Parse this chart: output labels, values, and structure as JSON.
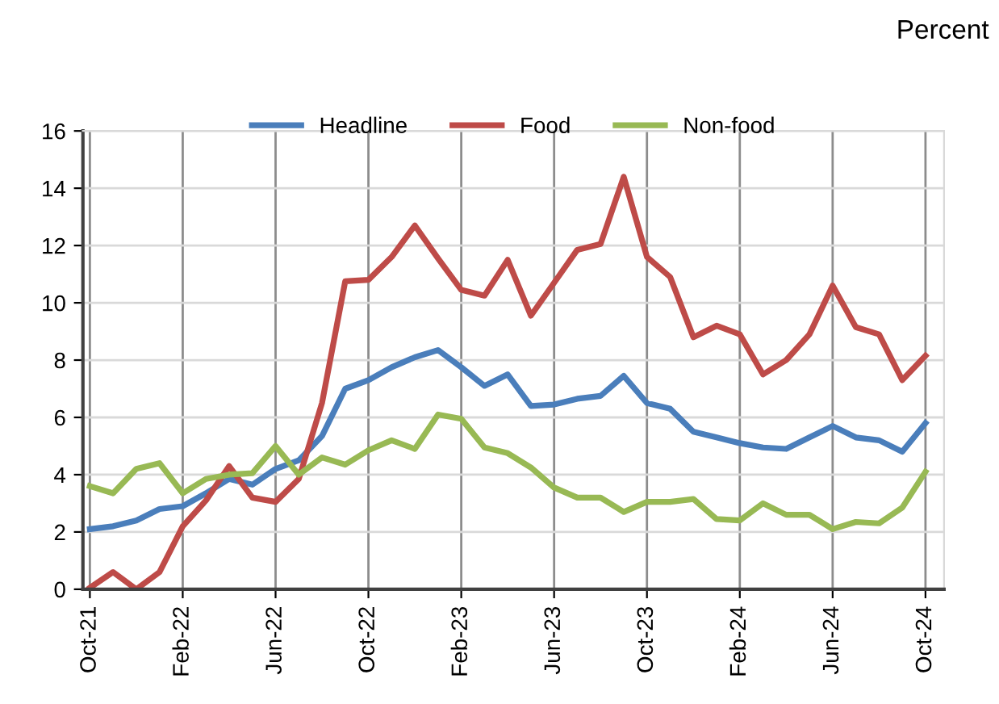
{
  "chart_data": {
    "type": "line",
    "ylabel": "Percent",
    "categories": [
      "Oct-21",
      null,
      null,
      null,
      "Feb-22",
      null,
      null,
      null,
      "Jun-22",
      null,
      null,
      null,
      "Oct-22",
      null,
      null,
      null,
      "Feb-23",
      null,
      null,
      null,
      "Jun-23",
      null,
      null,
      null,
      "Oct-23",
      null,
      null,
      null,
      "Feb-24",
      null,
      null,
      null,
      "Jun-24",
      null,
      null,
      null,
      "Oct-24"
    ],
    "series": [
      {
        "name": "Headline",
        "color": "#4a7ebb",
        "values": [
          2.1,
          2.2,
          2.4,
          2.8,
          2.9,
          3.35,
          3.85,
          3.65,
          4.2,
          4.5,
          5.35,
          7.0,
          7.3,
          7.75,
          8.1,
          8.35,
          7.75,
          7.1,
          7.5,
          6.4,
          6.45,
          6.65,
          6.75,
          7.45,
          6.5,
          6.3,
          5.5,
          5.3,
          5.1,
          4.95,
          4.9,
          5.3,
          5.7,
          5.3,
          5.2,
          4.8,
          5.8
        ]
      },
      {
        "name": "Food",
        "color": "#be4b48",
        "values": [
          0.05,
          0.6,
          0.0,
          0.6,
          2.2,
          3.1,
          4.3,
          3.2,
          3.05,
          3.85,
          6.5,
          10.75,
          10.8,
          11.6,
          12.7,
          11.55,
          10.45,
          10.25,
          11.5,
          9.55,
          10.7,
          11.85,
          12.05,
          14.4,
          11.6,
          10.9,
          8.8,
          9.2,
          8.9,
          7.5,
          8.0,
          8.9,
          10.6,
          9.15,
          8.9,
          7.3,
          8.15
        ]
      },
      {
        "name": "Non-food",
        "color": "#98b954",
        "values": [
          3.6,
          3.35,
          4.2,
          4.4,
          3.35,
          3.85,
          4.0,
          4.05,
          5.0,
          4.0,
          4.6,
          4.35,
          4.85,
          5.2,
          4.9,
          6.1,
          5.95,
          4.95,
          4.75,
          4.25,
          3.55,
          3.2,
          3.2,
          2.7,
          3.05,
          3.05,
          3.15,
          2.45,
          2.4,
          3.0,
          2.6,
          2.6,
          2.1,
          2.35,
          2.3,
          2.85,
          4.1
        ]
      }
    ],
    "ylim": [
      0,
      16
    ],
    "yticks": [
      0,
      2,
      4,
      6,
      8,
      10,
      12,
      14,
      16
    ],
    "grid": true,
    "legend": "top",
    "marker": "none",
    "line_style": "solid"
  }
}
